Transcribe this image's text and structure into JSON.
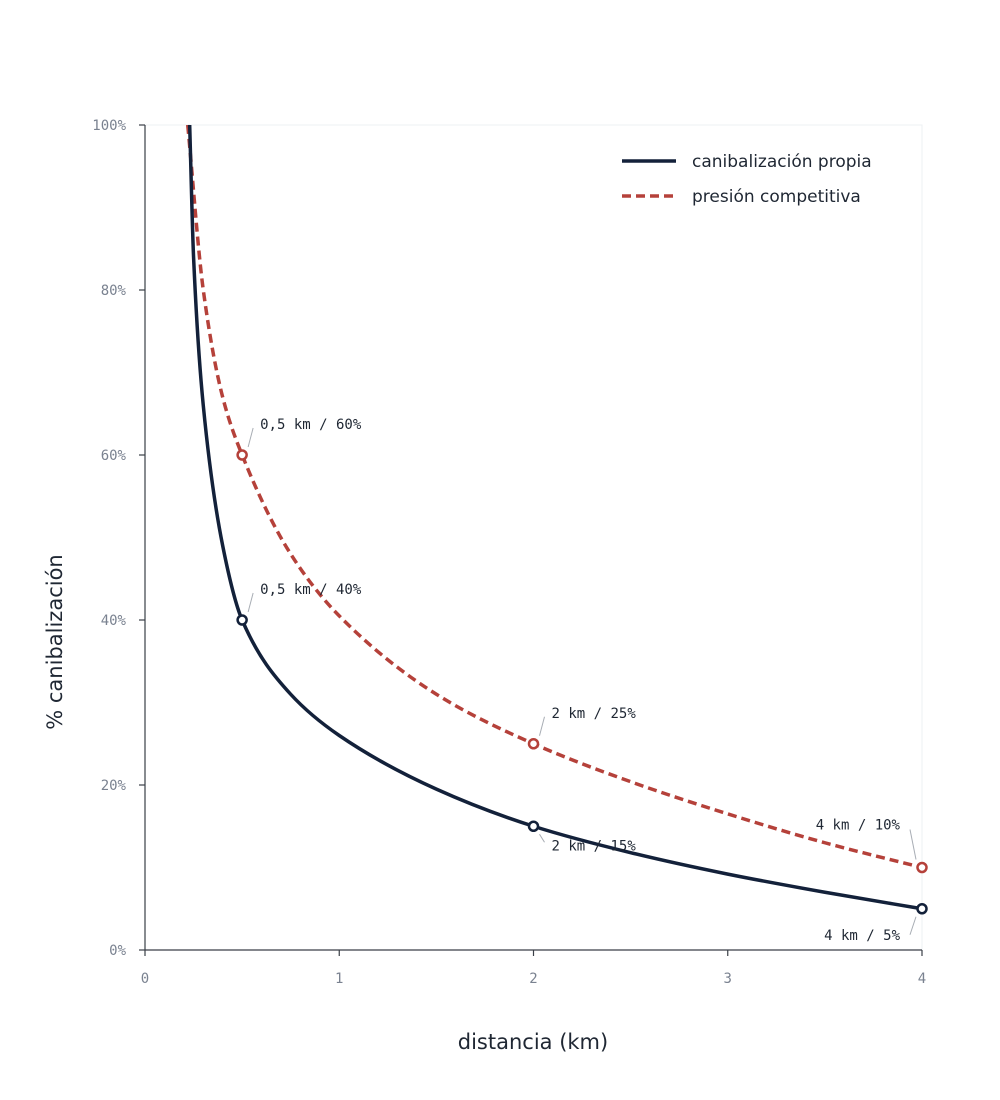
{
  "chart_data": {
    "type": "line",
    "xlabel": "distancia (km)",
    "ylabel": "% canibalización",
    "xlim": [
      0,
      4
    ],
    "ylim": [
      0,
      100
    ],
    "x_ticks": [
      "0",
      "1",
      "2",
      "3",
      "4"
    ],
    "y_ticks": [
      "0%",
      "20%",
      "40%",
      "60%",
      "80%",
      "100%"
    ],
    "grid": false,
    "legend_position": "top-right",
    "series": [
      {
        "name": "canibalización propia",
        "color": "#13213a",
        "style": "solid",
        "x": [
          0.23,
          0.25,
          0.3,
          0.4,
          0.5,
          0.75,
          1.0,
          1.5,
          2.0,
          2.5,
          3.0,
          3.5,
          4.0
        ],
        "y": [
          100,
          84,
          66,
          49,
          40,
          31,
          26,
          19.5,
          15,
          11.8,
          9.2,
          7,
          5
        ]
      },
      {
        "name": "presión competitiva",
        "color": "#b5413a",
        "style": "dashed",
        "x": [
          0.22,
          0.3,
          0.4,
          0.5,
          0.75,
          1.0,
          1.5,
          2.0,
          2.5,
          3.0,
          3.5,
          4.0
        ],
        "y": [
          100,
          80,
          67,
          60,
          48,
          40.5,
          31,
          25,
          20.4,
          16.5,
          13,
          10
        ]
      }
    ],
    "annotations": [
      {
        "series": "presión competitiva",
        "x": 0.5,
        "y": 60,
        "label": "0,5 km / 60%",
        "placement": "above-right"
      },
      {
        "series": "canibalización propia",
        "x": 0.5,
        "y": 40,
        "label": "0,5 km / 40%",
        "placement": "above-right"
      },
      {
        "series": "presión competitiva",
        "x": 2,
        "y": 25,
        "label": "2 km / 25%",
        "placement": "above-right"
      },
      {
        "series": "canibalización propia",
        "x": 2,
        "y": 15,
        "label": "2 km / 15%",
        "placement": "below-right"
      },
      {
        "series": "presión competitiva",
        "x": 4,
        "y": 10,
        "label": "4 km / 10%",
        "placement": "above-left"
      },
      {
        "series": "canibalización propia",
        "x": 4,
        "y": 5,
        "label": "4 km / 5%",
        "placement": "below-left"
      }
    ]
  }
}
